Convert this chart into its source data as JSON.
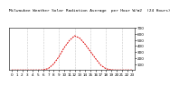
{
  "title": "Milwaukee Weather Solar Radiation Average  per Hour W/m2  (24 Hours)",
  "hours": [
    0,
    1,
    2,
    3,
    4,
    5,
    6,
    7,
    8,
    9,
    10,
    11,
    12,
    13,
    14,
    15,
    16,
    17,
    18,
    19,
    20,
    21,
    22,
    23
  ],
  "values": [
    0,
    0,
    0,
    0,
    0,
    0,
    2,
    25,
    100,
    220,
    370,
    490,
    570,
    530,
    430,
    310,
    190,
    80,
    20,
    3,
    0,
    0,
    0,
    0
  ],
  "line_color": "#dd0000",
  "bg_color": "#ffffff",
  "grid_color": "#999999",
  "ylim": [
    0,
    700
  ],
  "yticks": [
    100,
    200,
    300,
    400,
    500,
    600,
    700
  ],
  "grid_hours": [
    3,
    6,
    9,
    12,
    15,
    18,
    21
  ],
  "title_fontsize": 3.2,
  "tick_fontsize": 3.0
}
